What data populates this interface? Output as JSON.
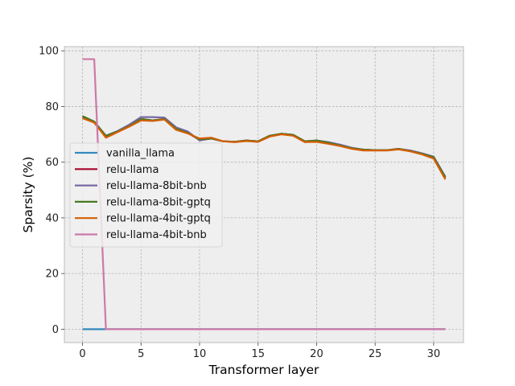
{
  "chart_data": {
    "type": "line",
    "title": "",
    "xlabel": "Transformer layer",
    "ylabel": "Sparsity (%)",
    "xlim": [
      -1.55,
      32.55
    ],
    "ylim": [
      -4.8,
      101.5
    ],
    "xticks": [
      0,
      5,
      10,
      15,
      20,
      25,
      30
    ],
    "yticks": [
      0,
      20,
      40,
      60,
      80,
      100
    ],
    "grid": true,
    "legend_position": "center-left",
    "x": [
      0,
      1,
      2,
      3,
      4,
      5,
      6,
      7,
      8,
      9,
      10,
      11,
      12,
      13,
      14,
      15,
      16,
      17,
      18,
      19,
      20,
      21,
      22,
      23,
      24,
      25,
      26,
      27,
      28,
      29,
      30,
      31
    ],
    "series": [
      {
        "name": "vanilla_llama",
        "color": "#348ABD",
        "values": [
          0,
          0,
          0,
          0,
          0,
          0,
          0,
          0,
          0,
          0,
          0,
          0,
          0,
          0,
          0,
          0,
          0,
          0,
          0,
          0,
          0,
          0,
          0,
          0,
          0,
          0,
          0,
          0,
          0,
          0,
          0,
          0
        ]
      },
      {
        "name": "relu-llama",
        "color": "#A60628",
        "values": [
          76.5,
          74.5,
          69.5,
          71,
          73,
          75.5,
          75,
          75.5,
          72,
          70.5,
          68,
          68.5,
          67.5,
          67.3,
          67.8,
          67.5,
          69.5,
          70.2,
          69.8,
          67.5,
          67.8,
          67,
          66,
          65,
          64.5,
          64.3,
          64.3,
          64.8,
          64,
          63,
          61.8,
          54.5
        ]
      },
      {
        "name": "relu-llama-8bit-bnb",
        "color": "#7A68A6",
        "values": [
          76,
          74.5,
          69.5,
          71.2,
          73.5,
          76.2,
          76.2,
          76,
          72.5,
          71,
          67.8,
          68.5,
          67.5,
          67.3,
          67.8,
          67.3,
          69.5,
          70.2,
          69.8,
          67.3,
          67.8,
          67.2,
          66.3,
          65.2,
          64.5,
          64.3,
          64.3,
          64.8,
          64.2,
          63.2,
          62,
          54.8
        ]
      },
      {
        "name": "relu-llama-8bit-gptq",
        "color": "#467821",
        "values": [
          76.5,
          74.6,
          69.4,
          71,
          73,
          75.5,
          75,
          75.5,
          72,
          70.5,
          68.2,
          68.5,
          67.5,
          67.3,
          67.8,
          67.5,
          69.5,
          70.2,
          69.8,
          67.5,
          67.8,
          67,
          66,
          65,
          64.5,
          64.3,
          64.3,
          64.8,
          64,
          63,
          61.8,
          54.5
        ]
      },
      {
        "name": "relu-llama-4bit-gptq",
        "color": "#D55E00",
        "values": [
          75.8,
          74.2,
          68.8,
          70.8,
          72.8,
          75,
          74.8,
          75.3,
          71.6,
          70.3,
          68.5,
          68.8,
          67.5,
          67.2,
          67.6,
          67.3,
          69.2,
          70,
          69.5,
          67.2,
          67.3,
          66.6,
          65.8,
          64.8,
          64.2,
          64.2,
          64.2,
          64.6,
          63.9,
          62.8,
          61.3,
          53.8
        ]
      },
      {
        "name": "relu-llama-4bit-bnb",
        "color": "#CC79A7",
        "values": [
          97,
          97,
          0,
          0,
          0,
          0,
          0,
          0,
          0,
          0,
          0,
          0,
          0,
          0,
          0,
          0,
          0,
          0,
          0,
          0,
          0,
          0,
          0,
          0,
          0,
          0,
          0,
          0,
          0,
          0,
          0,
          0
        ]
      }
    ]
  }
}
